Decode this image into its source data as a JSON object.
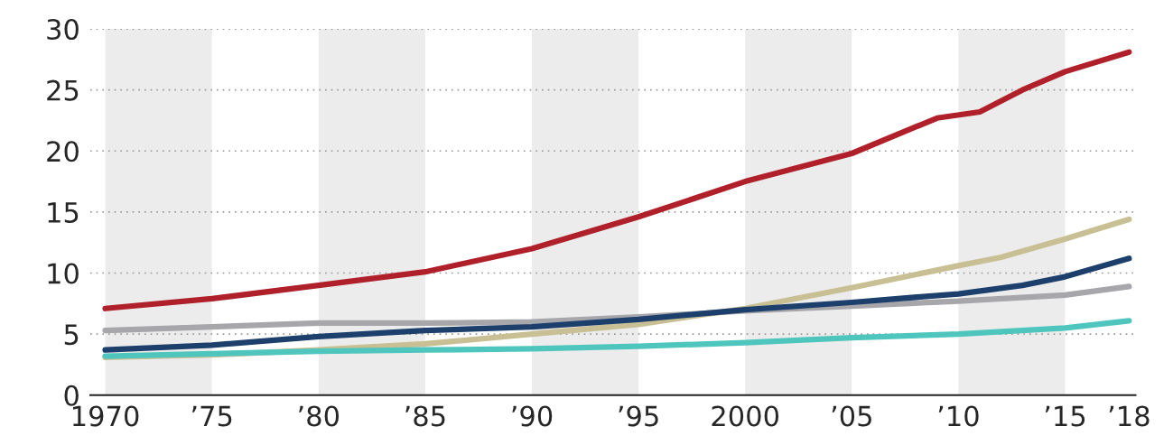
{
  "chart_data": {
    "type": "line",
    "x": [
      1970,
      1975,
      1980,
      1985,
      1990,
      1995,
      2000,
      2005,
      2009,
      2011,
      2013,
      2015,
      2018
    ],
    "series": [
      {
        "color": "#b0202a",
        "values": [
          7.1,
          7.9,
          9.0,
          10.1,
          12.0,
          14.6,
          17.5,
          19.8,
          22.7,
          23.2,
          25.0,
          26.5,
          28.1
        ]
      },
      {
        "color": "#c9bf94",
        "x": [
          1970,
          1975,
          1980,
          1985,
          1990,
          1995,
          2000,
          2005,
          2010,
          2012,
          2015,
          2018
        ],
        "values": [
          3.1,
          3.3,
          3.7,
          4.2,
          5.0,
          5.8,
          7.1,
          8.8,
          10.6,
          11.3,
          12.8,
          14.4
        ]
      },
      {
        "color": "#a6a6ab",
        "x": [
          1970,
          1975,
          1980,
          1985,
          1990,
          1995,
          2000,
          2005,
          2010,
          2015,
          2018
        ],
        "values": [
          5.3,
          5.6,
          5.9,
          5.9,
          6.0,
          6.4,
          6.9,
          7.3,
          7.7,
          8.2,
          8.9
        ]
      },
      {
        "color": "#1d3f6b",
        "x": [
          1970,
          1975,
          1980,
          1985,
          1990,
          1995,
          2000,
          2005,
          2010,
          2013,
          2015,
          2018
        ],
        "values": [
          3.7,
          4.1,
          4.8,
          5.3,
          5.6,
          6.2,
          7.0,
          7.6,
          8.3,
          9.0,
          9.7,
          11.2
        ]
      },
      {
        "color": "#4fc6bd",
        "x": [
          1970,
          1975,
          1980,
          1985,
          1990,
          1995,
          2000,
          2005,
          2010,
          2015,
          2018
        ],
        "values": [
          3.2,
          3.4,
          3.6,
          3.7,
          3.8,
          4.0,
          4.3,
          4.7,
          5.0,
          5.5,
          6.1
        ]
      }
    ],
    "xlim": [
      1969.3,
      2018.3
    ],
    "xticks": [
      1970,
      {
        "value": 1975,
        "label": "’75"
      },
      {
        "value": 1980,
        "label": "’80"
      },
      {
        "value": 1985,
        "label": "’85"
      },
      {
        "value": 1990,
        "label": "’90"
      },
      {
        "value": 1995,
        "label": "’95"
      },
      2000,
      {
        "value": 2005,
        "label": "’05"
      },
      {
        "value": 2010,
        "label": "’10"
      },
      {
        "value": 2015,
        "label": "’15"
      },
      {
        "value": 2018,
        "label": "’18"
      }
    ],
    "ylim": [
      0,
      30
    ],
    "yticks": [
      0,
      5,
      10,
      15,
      20,
      25,
      30
    ],
    "grid": "y",
    "line_style": "solid",
    "bands": [
      {
        "axis": "x",
        "from": 1970,
        "to": 1975,
        "color": "#ececec"
      },
      {
        "axis": "x",
        "from": 1980,
        "to": 1985,
        "color": "#ececec"
      },
      {
        "axis": "x",
        "from": 1990,
        "to": 1995,
        "color": "#ececec"
      },
      {
        "axis": "x",
        "from": 2000,
        "to": 2005,
        "color": "#ececec"
      },
      {
        "axis": "x",
        "from": 2010,
        "to": 2015,
        "color": "#ececec"
      }
    ]
  }
}
